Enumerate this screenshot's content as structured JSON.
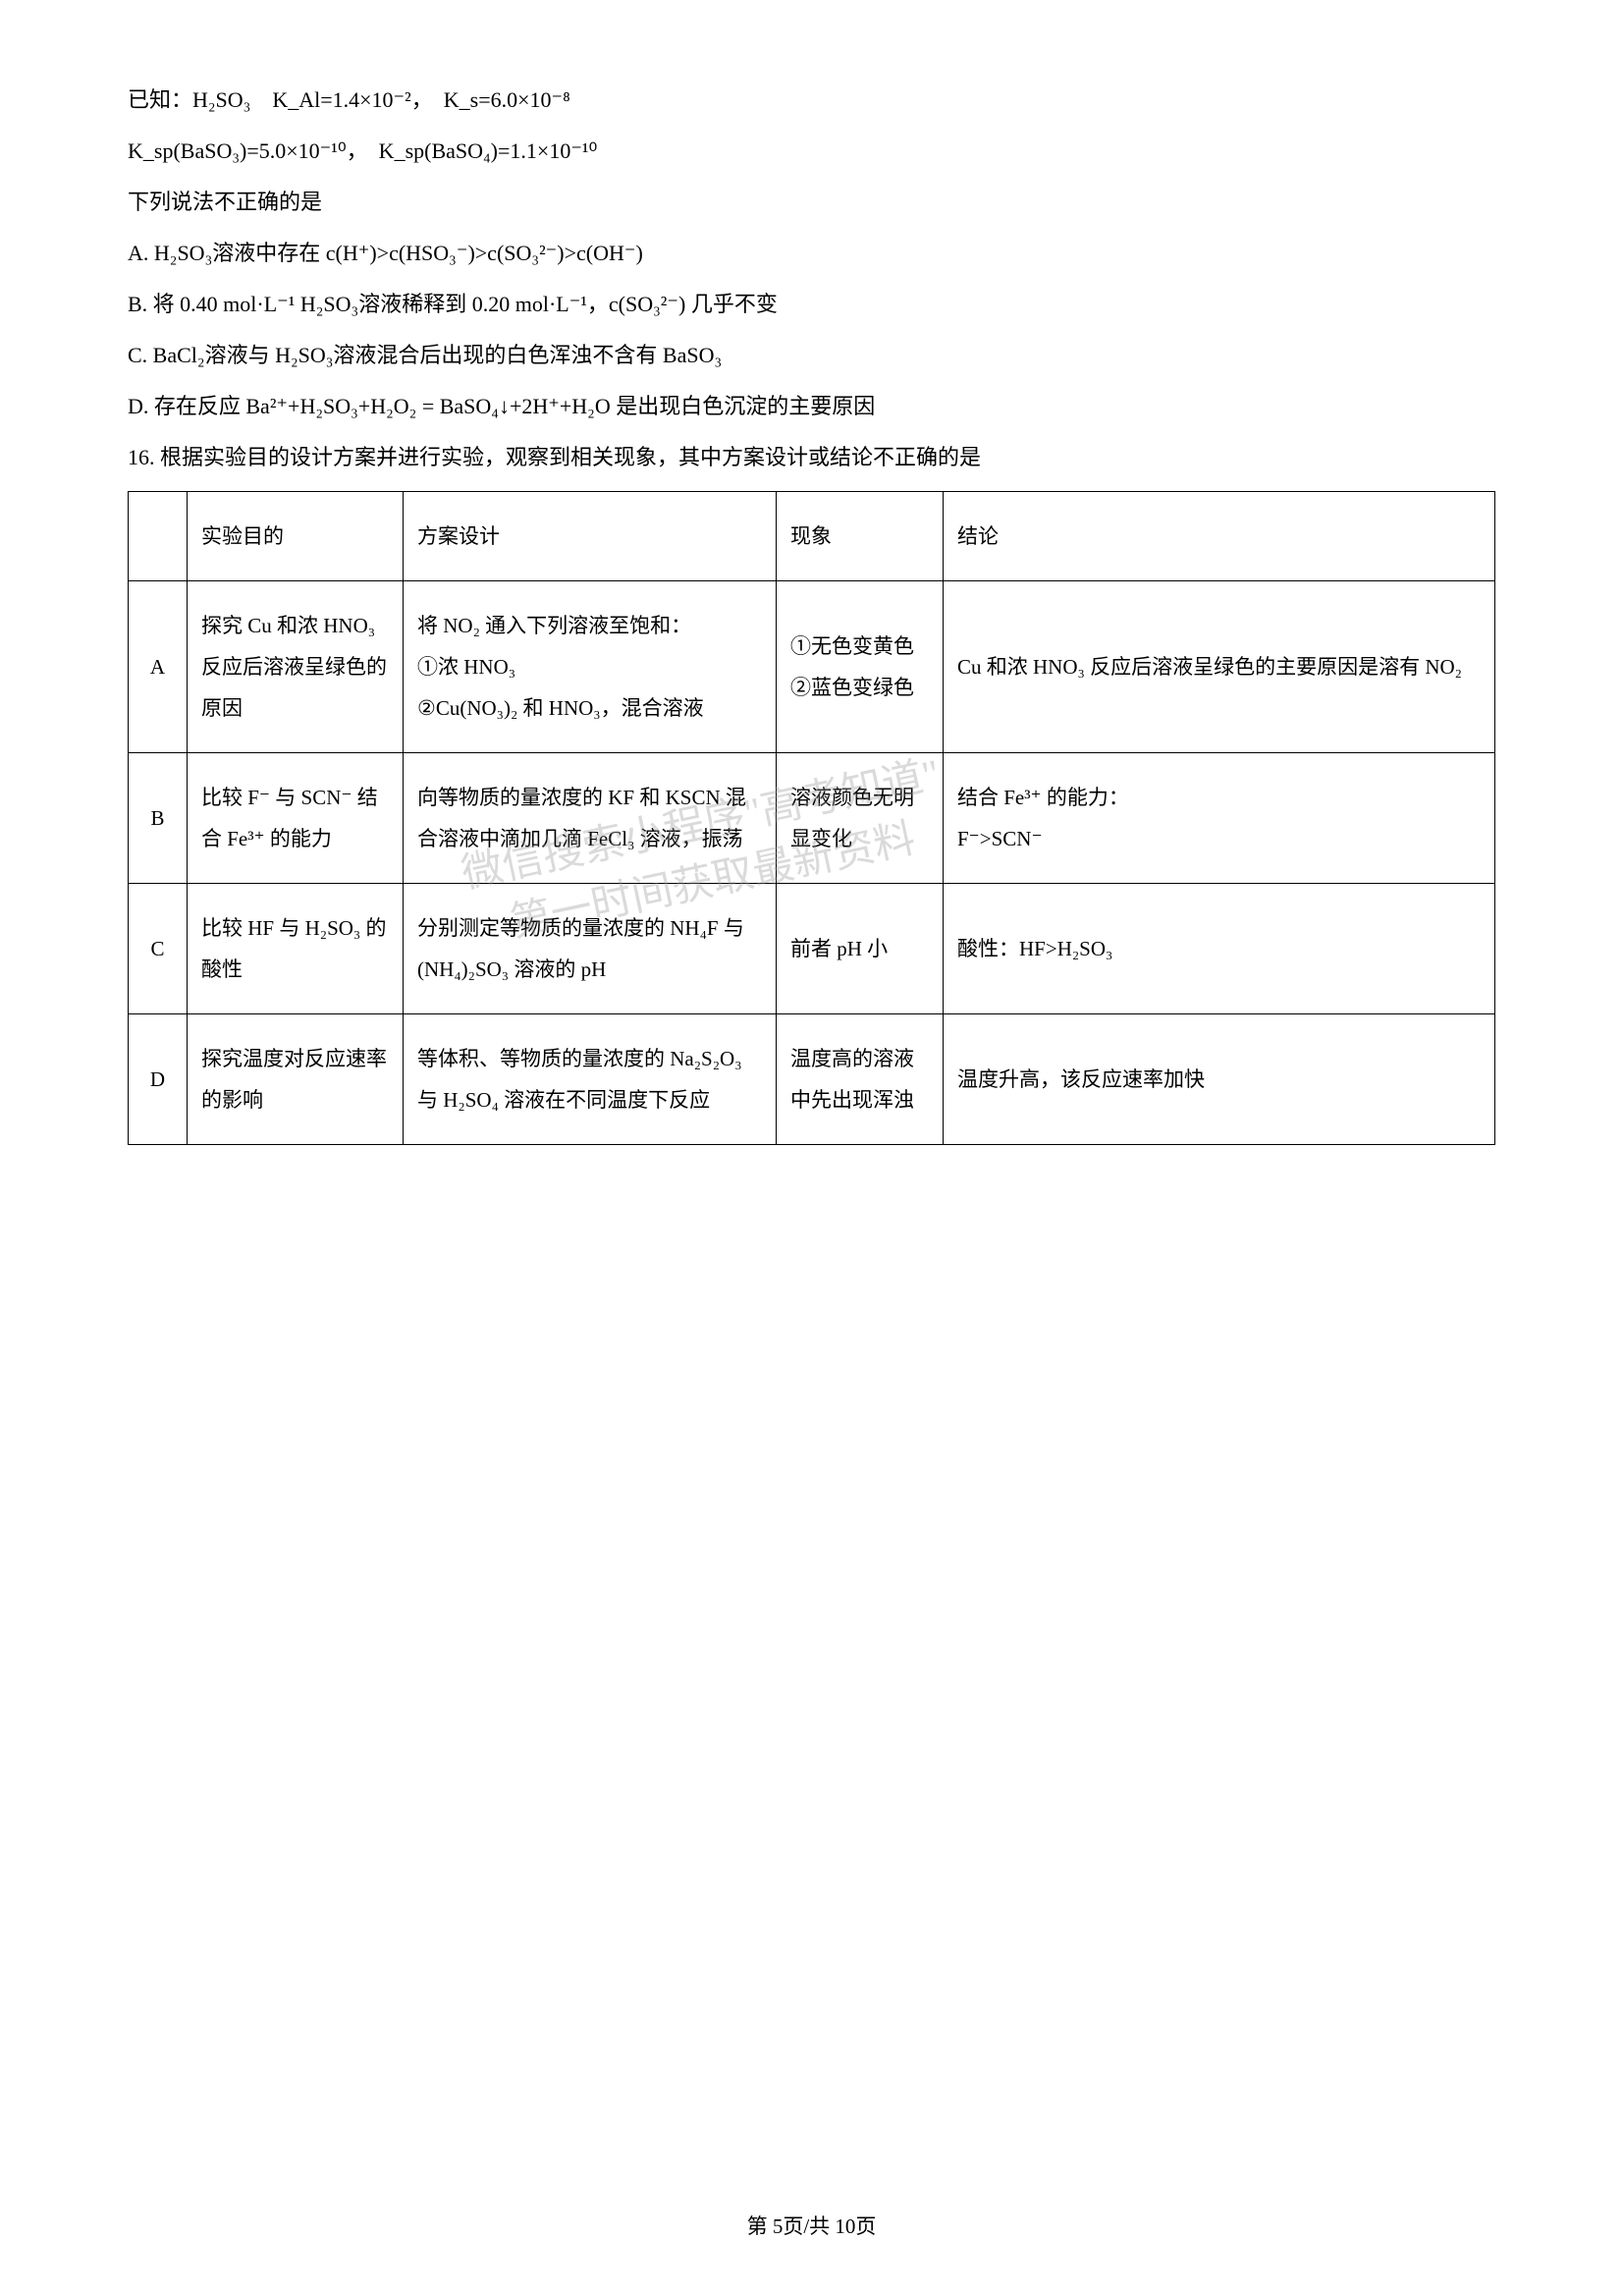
{
  "given": {
    "line1": "已知：H₂SO₃　K_Al=1.4×10⁻²，　K_s=6.0×10⁻⁸",
    "line2": "K_sp(BaSO₃)=5.0×10⁻¹⁰，　K_sp(BaSO₄)=1.1×10⁻¹⁰",
    "line3": "下列说法不正确的是"
  },
  "options": {
    "A": "A.  H₂SO₃溶液中存在 c(H⁺)>c(HSO₃⁻)>c(SO₃²⁻)>c(OH⁻)",
    "B": "B.  将 0.40 mol·L⁻¹ H₂SO₃溶液稀释到 0.20 mol·L⁻¹，c(SO₃²⁻) 几乎不变",
    "C": "C.  BaCl₂溶液与 H₂SO₃溶液混合后出现的白色浑浊不含有 BaSO₃",
    "D": "D.  存在反应 Ba²⁺+H₂SO₃+H₂O₂ = BaSO₄↓+2H⁺+H₂O 是出现白色沉淀的主要原因"
  },
  "q16_stem": "16. 根据实验目的设计方案并进行实验，观察到相关现象，其中方案设计或结论不正确的是",
  "table": {
    "headers": [
      "",
      "实验目的",
      "方案设计",
      "现象",
      "结论"
    ],
    "rows": [
      {
        "label": "A",
        "purpose": "探究 Cu 和浓 HNO₃ 反应后溶液呈绿色的原因",
        "plan": "将 NO₂ 通入下列溶液至饱和：\n①浓 HNO₃\n②Cu(NO₃)₂ 和 HNO₃，混合溶液",
        "phenomenon": "①无色变黄色\n②蓝色变绿色",
        "conclusion": "Cu 和浓 HNO₃ 反应后溶液呈绿色的主要原因是溶有 NO₂"
      },
      {
        "label": "B",
        "purpose": "比较 F⁻ 与 SCN⁻ 结合 Fe³⁺ 的能力",
        "plan": "向等物质的量浓度的 KF 和 KSCN 混合溶液中滴加几滴 FeCl₃ 溶液，振荡",
        "phenomenon": "溶液颜色无明显变化",
        "conclusion": "结合 Fe³⁺ 的能力：\nF⁻>SCN⁻"
      },
      {
        "label": "C",
        "purpose": "比较 HF 与 H₂SO₃ 的酸性",
        "plan": "分别测定等物质的量浓度的 NH₄F 与 (NH₄)₂SO₃ 溶液的 pH",
        "phenomenon": "前者 pH 小",
        "conclusion": "酸性：HF>H₂SO₃"
      },
      {
        "label": "D",
        "purpose": "探究温度对反应速率的影响",
        "plan": "等体积、等物质的量浓度的 Na₂S₂O₃ 与 H₂SO₄ 溶液在不同温度下反应",
        "phenomenon": "温度高的溶液中先出现浑浊",
        "conclusion": "温度升高，该反应速率加快"
      }
    ]
  },
  "watermark": {
    "line1": "微信搜索小程序\"高考知道\"",
    "line2": "第一时间获取最新资料"
  },
  "footer": "第 5页/共 10页"
}
